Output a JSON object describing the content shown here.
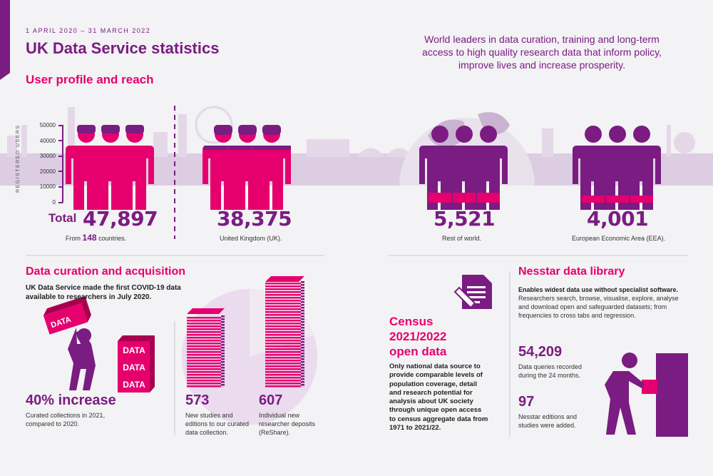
{
  "header": {
    "date_range": "1 APRIL 2020 – 31 MARCH 2022",
    "title": "UK Data Service statistics",
    "tagline": "World leaders in data curation, training and long-term access to high quality research data that inform policy, improve lives and increase prosperity."
  },
  "user_profile": {
    "heading": "User profile and reach",
    "axis_label": "REGISTERED USERS",
    "axis_ticks": [
      "50000",
      "40000",
      "30000",
      "20000",
      "10000",
      "0"
    ],
    "total_label": "Total",
    "total_value": "47,897",
    "countries_prefix": "From",
    "countries_count": "148",
    "countries_suffix": "countries.",
    "groups": [
      {
        "value": "38,375",
        "label": "United Kingdom (UK)."
      },
      {
        "value": "5,521",
        "label": "Rest of world."
      },
      {
        "value": "4,001",
        "label": "European Economic Area (EEA)."
      }
    ]
  },
  "curation": {
    "heading": "Data curation and acquisition",
    "intro": "UK Data Service made the first COVID-19 data available to researchers in July 2020.",
    "data_word": "DATA",
    "increase_value": "40% increase",
    "increase_desc": "Curated collections in 2021, compared to 2020.",
    "stat1_value": "573",
    "stat1_desc": "New studies and editions to our curated data collection.",
    "stat2_value": "607",
    "stat2_desc": "Individual new researcher deposits (ReShare)."
  },
  "census": {
    "heading_line1": "Census",
    "heading_line2": "2021/2022",
    "heading_line3": "open data",
    "desc": "Only national data source to provide comparable levels of population coverage, detail and research potential for analysis about UK society through unique open access to census aggregate data from 1971 to 2021/22."
  },
  "nesstar": {
    "heading": "Nesstar data library",
    "bold_line": "Enables widest data use without specialist software.",
    "desc": "Researchers search, browse, visualise, explore, analyse and download open and safeguarded datasets; from frequencies to cross tabs and regression.",
    "stat1_value": "54,209",
    "stat1_desc": "Data queries recorded during the 24 months.",
    "stat2_value": "97",
    "stat2_desc": "Nesstar editions and studies were added."
  },
  "colors": {
    "purple": "#7a1c82",
    "magenta": "#e6006e",
    "lilac": "#dcc8e0"
  },
  "icons": [
    "person-icon",
    "document-pencil-icon",
    "data-box-icon",
    "paper-stack-icon",
    "filing-cabinet-icon",
    "globe-icon",
    "skyline-icon"
  ]
}
